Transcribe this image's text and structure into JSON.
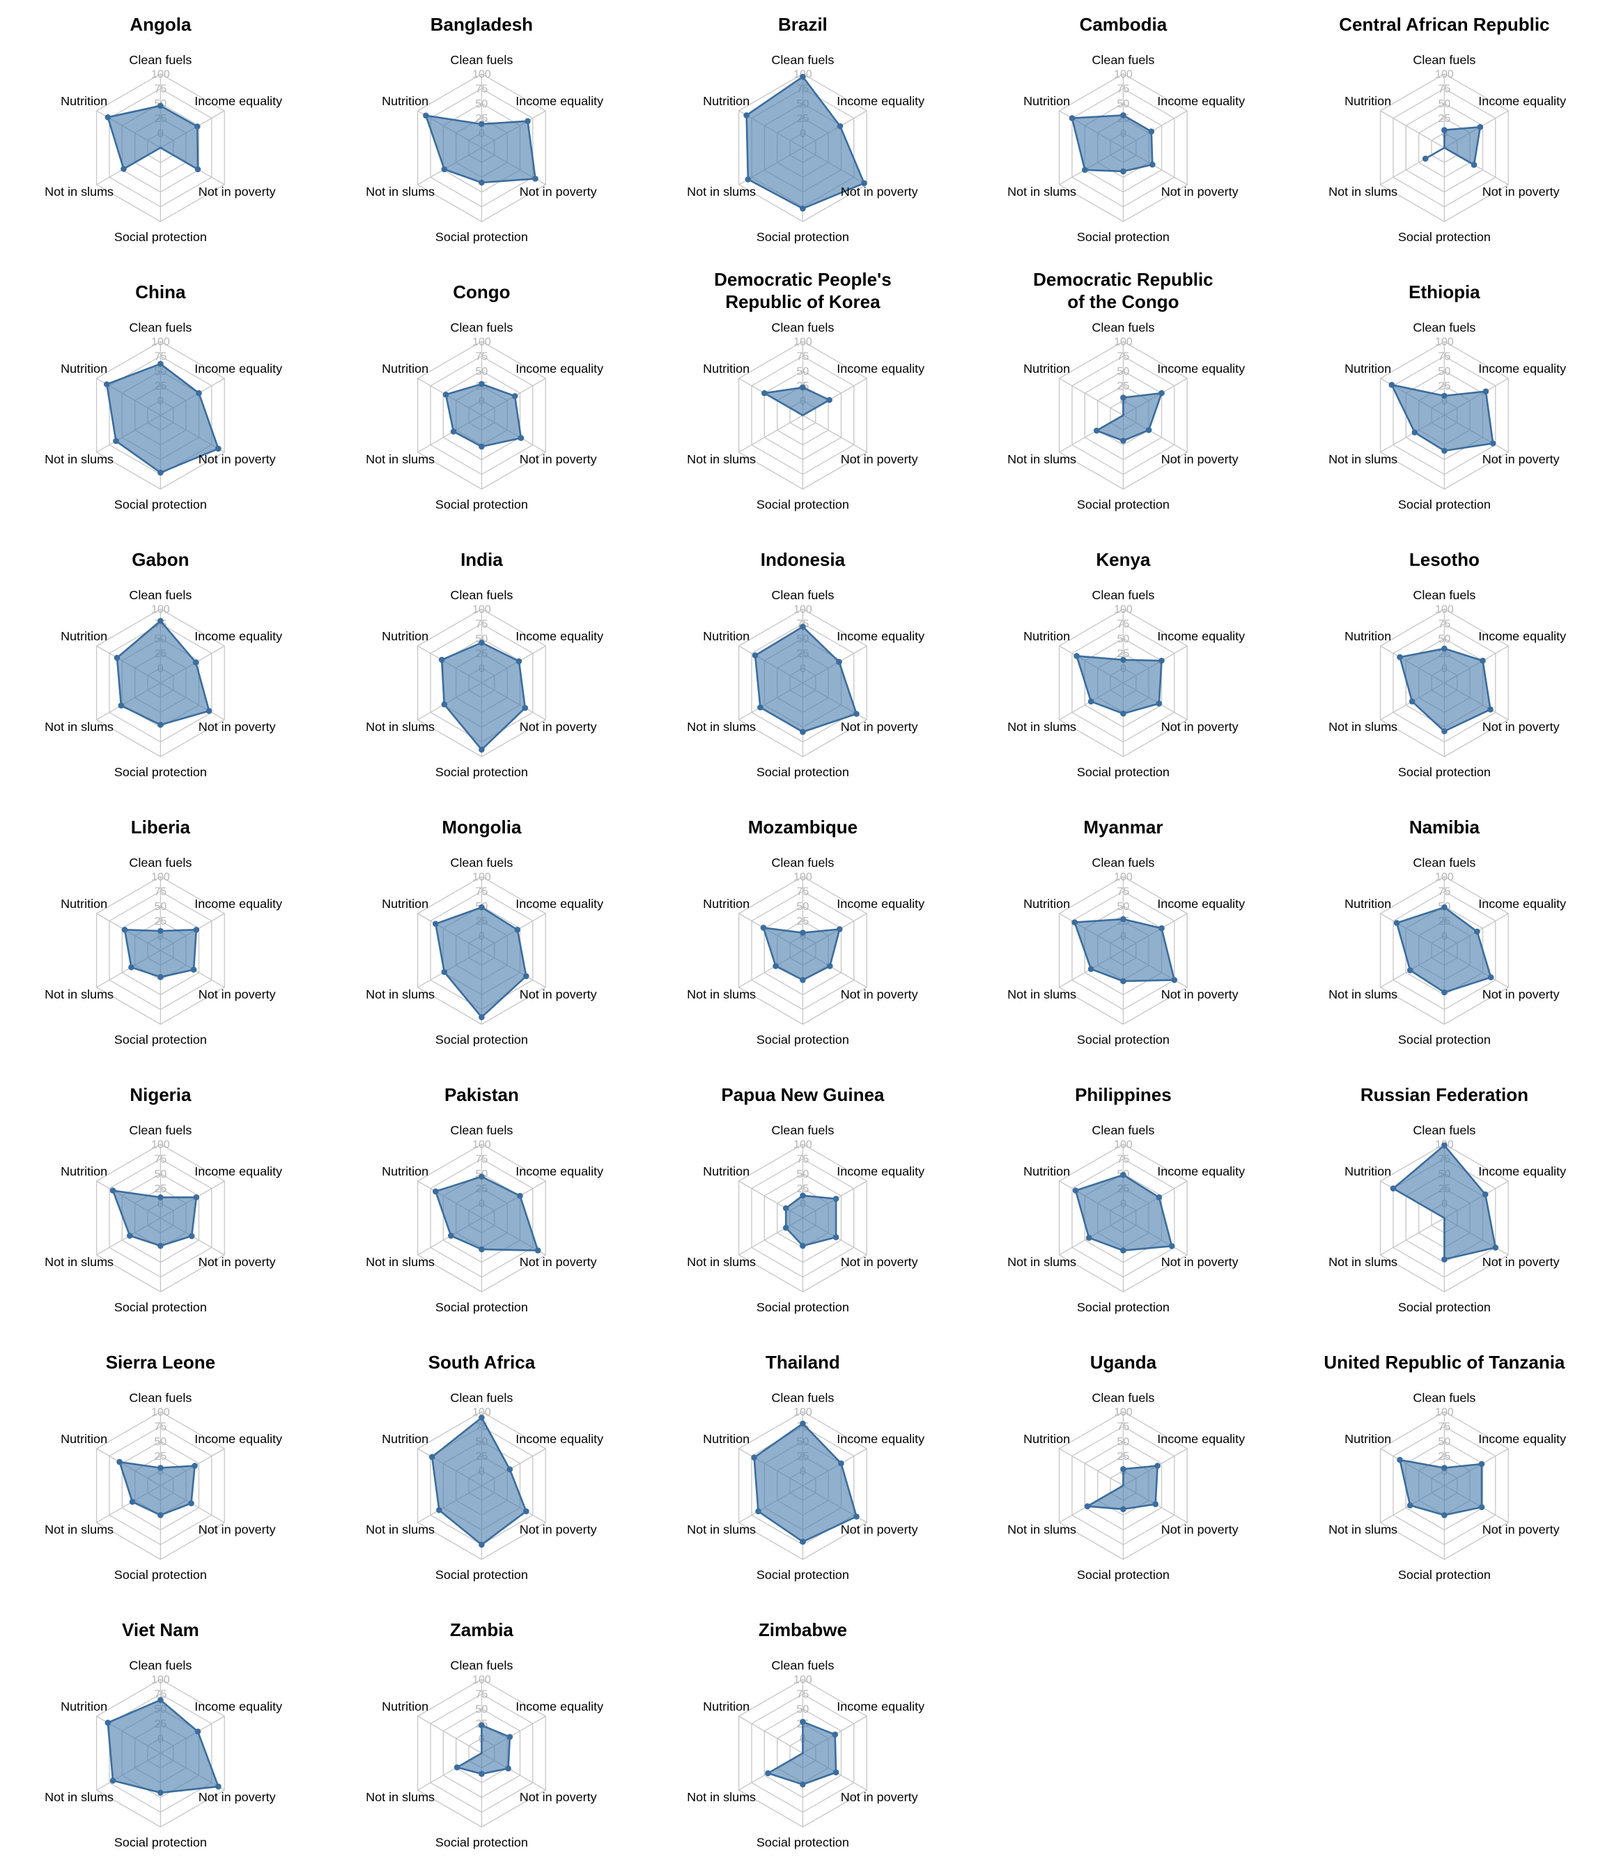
{
  "page": {
    "background": "#ffffff",
    "layout_columns": 5
  },
  "chart_data": {
    "type": "radar",
    "grid": "hexagonal",
    "axes": [
      "Clean fuels",
      "Income equality",
      "Not in poverty",
      "Social protection",
      "Not in slums",
      "Nutrition"
    ],
    "radial_ticks": [
      100,
      75,
      50,
      25,
      0
    ],
    "scale": {
      "min": 0,
      "max": 100
    },
    "legend": "none",
    "colors": {
      "polygon_stroke": "#3b6d9d",
      "polygon_fill": "#4e7fae",
      "polygon_fill_opacity": 0.62,
      "grid_line": "#c6c6c6",
      "tick_label": "#b4b4b4",
      "axis_label": "#000000",
      "title": "#000000"
    },
    "countries": [
      {
        "name": "Angola",
        "values": [
          46,
          47,
          48,
          null,
          47,
          78
        ]
      },
      {
        "name": "Bangladesh",
        "values": [
          15,
          65,
          80,
          34,
          48,
          84
        ]
      },
      {
        "name": "Brazil",
        "values": [
          95,
          48,
          95,
          78,
          82,
          85
        ]
      },
      {
        "name": "Cambodia",
        "values": [
          30,
          30,
          32,
          15,
          50,
          75
        ]
      },
      {
        "name": "Central African Republic",
        "values": [
          5,
          45,
          33,
          null,
          12,
          null
        ]
      },
      {
        "name": "China",
        "values": [
          62,
          50,
          88,
          72,
          62,
          80
        ]
      },
      {
        "name": "Congo",
        "values": [
          28,
          40,
          52,
          28,
          30,
          45
        ]
      },
      {
        "name": "Democratic People's Republic of Korea",
        "name_lines": [
          "Democratic People's",
          "Republic of Korea"
        ],
        "values": [
          22,
          27,
          null,
          null,
          null,
          50
        ]
      },
      {
        "name": "Democratic Republic of the Congo",
        "name_lines": [
          "Democratic Republic",
          "of the Congo"
        ],
        "values": [
          5,
          50,
          25,
          18,
          27,
          null
        ]
      },
      {
        "name": "Ethiopia",
        "values": [
          8,
          56,
          70,
          35,
          33,
          78
        ]
      },
      {
        "name": "Gabon",
        "values": [
          80,
          44,
          70,
          46,
          52,
          60
        ]
      },
      {
        "name": "India",
        "values": [
          43,
          48,
          60,
          88,
          48,
          53
        ]
      },
      {
        "name": "Indonesia",
        "values": [
          70,
          46,
          80,
          58,
          58,
          68
        ]
      },
      {
        "name": "Kenya",
        "values": [
          14,
          50,
          45,
          27,
          38,
          66
        ]
      },
      {
        "name": "Lesotho",
        "values": [
          33,
          50,
          65,
          57,
          38,
          62
        ]
      },
      {
        "name": "Liberia",
        "values": [
          8,
          45,
          40,
          20,
          32,
          45
        ]
      },
      {
        "name": "Mongolia",
        "values": [
          48,
          45,
          62,
          88,
          48,
          65
        ]
      },
      {
        "name": "Mozambique",
        "values": [
          5,
          47,
          28,
          25,
          28,
          52
        ]
      },
      {
        "name": "Myanmar",
        "values": [
          28,
          50,
          75,
          27,
          38,
          70
        ]
      },
      {
        "name": "Namibia",
        "values": [
          48,
          39,
          66,
          46,
          42,
          68
        ]
      },
      {
        "name": "Nigeria",
        "values": [
          10,
          45,
          36,
          22,
          35,
          68
        ]
      },
      {
        "name": "Pakistan",
        "values": [
          45,
          50,
          85,
          28,
          35,
          65
        ]
      },
      {
        "name": "Papua New Guinea",
        "values": [
          13,
          40,
          40,
          22,
          8,
          8
        ]
      },
      {
        "name": "Philippines",
        "values": [
          48,
          45,
          70,
          30,
          42,
          68
        ]
      },
      {
        "name": "Russian Federation",
        "values": [
          98,
          55,
          75,
          45,
          null,
          75
        ]
      },
      {
        "name": "Sierra Leone",
        "values": [
          5,
          42,
          35,
          25,
          30,
          55
        ]
      },
      {
        "name": "South Africa",
        "values": [
          90,
          30,
          62,
          75,
          58,
          72
        ]
      },
      {
        "name": "Thailand",
        "values": [
          80,
          50,
          80,
          70,
          62,
          70
        ]
      },
      {
        "name": "Uganda",
        "values": [
          3,
          42,
          38,
          15,
          45,
          null
        ]
      },
      {
        "name": "United Republic of Tanzania",
        "values": [
          5,
          48,
          48,
          25,
          42,
          62
        ]
      },
      {
        "name": "Viet Nam",
        "values": [
          65,
          48,
          88,
          42,
          68,
          78
        ]
      },
      {
        "name": "Zambia",
        "values": [
          22,
          30,
          27,
          10,
          23,
          null
        ]
      },
      {
        "name": "Zimbabwe",
        "values": [
          28,
          38,
          40,
          28,
          43,
          null
        ]
      }
    ]
  }
}
